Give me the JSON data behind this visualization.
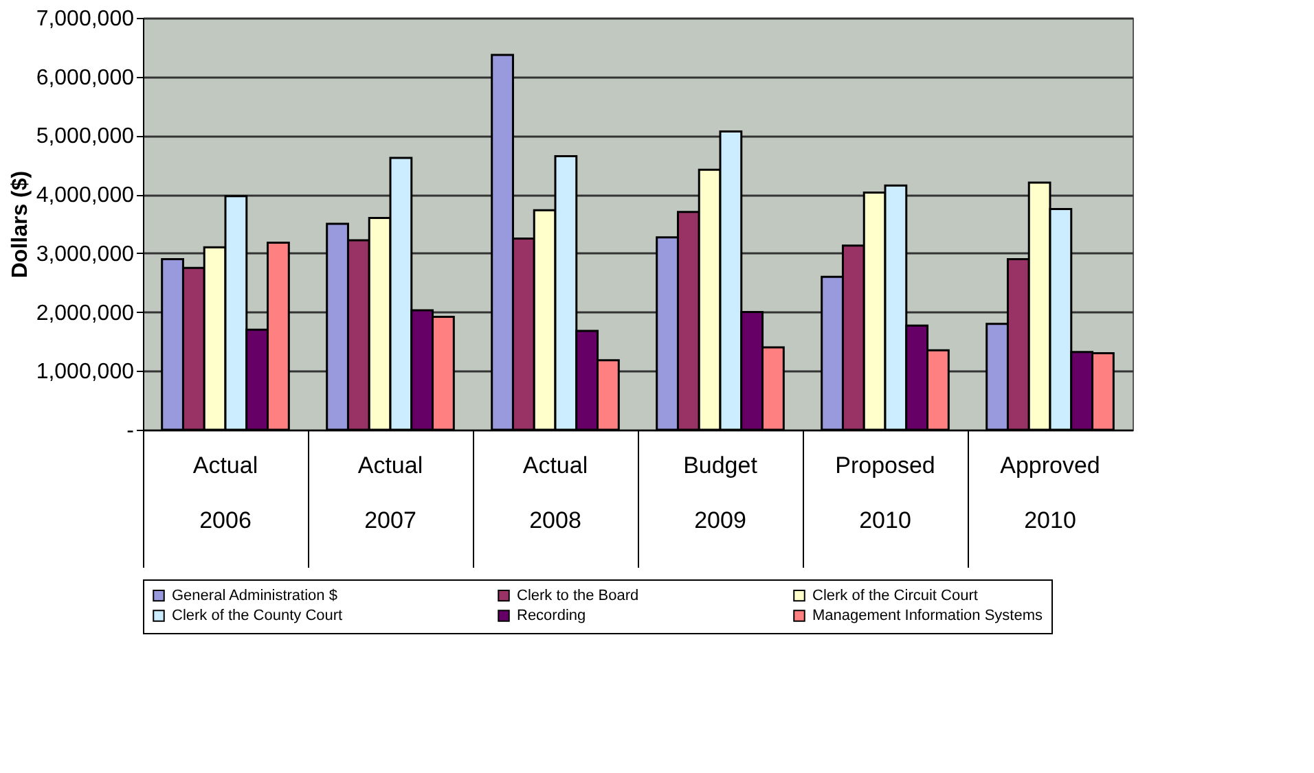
{
  "chart_data": {
    "type": "bar",
    "ylabel": "Dollars ($)",
    "categories": [
      "Actual\n2006",
      "Actual\n2007",
      "Actual\n2008",
      "Budget\n2009",
      "Proposed\n2010",
      "Approved\n2010"
    ],
    "series": [
      {
        "name": "General Administration $",
        "color": "#9999dd",
        "values": [
          2900000,
          3500000,
          6370000,
          3270000,
          2600000,
          1800000
        ]
      },
      {
        "name": "Clerk to the Board",
        "color": "#993366",
        "values": [
          2750000,
          3220000,
          3250000,
          3700000,
          3130000,
          2900000
        ]
      },
      {
        "name": "Clerk of the Circuit Court",
        "color": "#ffffcc",
        "values": [
          3100000,
          3600000,
          3730000,
          4420000,
          4030000,
          4200000
        ]
      },
      {
        "name": "Clerk of the County Court",
        "color": "#ccecff",
        "values": [
          3970000,
          4620000,
          4650000,
          5070000,
          4150000,
          3750000
        ]
      },
      {
        "name": "Recording",
        "color": "#660066",
        "values": [
          1700000,
          2030000,
          1680000,
          2000000,
          1770000,
          1320000
        ]
      },
      {
        "name": "Management Information Systems",
        "color": "#ff8080",
        "values": [
          3180000,
          1920000,
          1180000,
          1400000,
          1350000,
          1300000
        ]
      }
    ],
    "ylim": [
      0,
      7000000
    ],
    "yticks": [
      {
        "value": 0,
        "label": "-"
      },
      {
        "value": 1000000,
        "label": "1,000,000"
      },
      {
        "value": 2000000,
        "label": "2,000,000"
      },
      {
        "value": 3000000,
        "label": "3,000,000"
      },
      {
        "value": 4000000,
        "label": "4,000,000"
      },
      {
        "value": 5000000,
        "label": "5,000,000"
      },
      {
        "value": 6000000,
        "label": "6,000,000"
      },
      {
        "value": 7000000,
        "label": "7,000,000"
      }
    ],
    "grid": "y",
    "legend": "bottom"
  }
}
